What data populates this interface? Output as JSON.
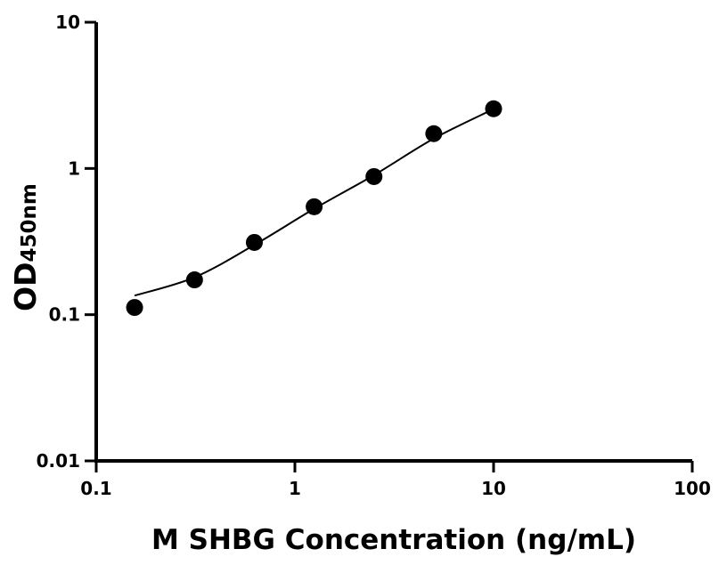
{
  "chart_data": {
    "type": "scatter",
    "xlabel": "M SHBG Concentration (ng/mL)",
    "ylabel_main": "OD",
    "ylabel_sub": "450nm",
    "x_scale": "log",
    "y_scale": "log",
    "xlim": [
      0.1,
      100
    ],
    "ylim": [
      0.01,
      10
    ],
    "x_ticks": [
      {
        "v": 0.1,
        "label": "0.1"
      },
      {
        "v": 1,
        "label": "1"
      },
      {
        "v": 10,
        "label": "10"
      },
      {
        "v": 100,
        "label": "100"
      }
    ],
    "y_ticks": [
      {
        "v": 0.01,
        "label": "0.01"
      },
      {
        "v": 0.1,
        "label": "0.1"
      },
      {
        "v": 1,
        "label": "1"
      },
      {
        "v": 10,
        "label": "10"
      }
    ],
    "grid": false,
    "points": {
      "x": [
        0.156,
        0.3125,
        0.625,
        1.25,
        2.5,
        5,
        10
      ],
      "y": [
        0.112,
        0.173,
        0.312,
        0.547,
        0.88,
        1.73,
        2.56
      ]
    },
    "fit_curve": {
      "x": [
        0.156,
        0.3125,
        0.625,
        1.25,
        2.5,
        5,
        10
      ],
      "y": [
        0.135,
        0.18,
        0.3,
        0.53,
        0.9,
        1.6,
        2.55
      ]
    },
    "colors": {
      "points": "#000000",
      "line": "#000000"
    }
  }
}
